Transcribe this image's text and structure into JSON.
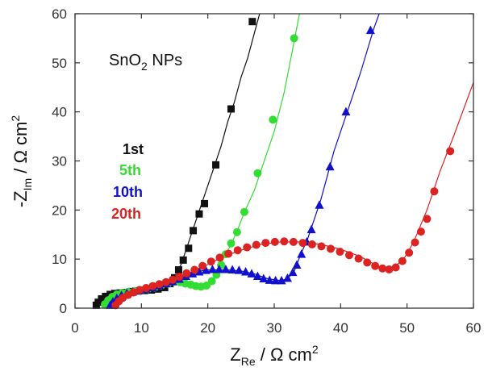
{
  "chart_data": {
    "type": "scatter",
    "title": "",
    "annotation": {
      "main": "SnO",
      "sub": "2",
      "rest": " NPs"
    },
    "xlabel": {
      "main": "Z",
      "sub": "Re",
      "rest": " / Ω cm",
      "sup": "2"
    },
    "ylabel": {
      "main": "-Z",
      "sub": "Im",
      "rest": " / Ω cm",
      "sup": "2"
    },
    "xlim": [
      0,
      60
    ],
    "ylim": [
      0,
      60
    ],
    "xticks": [
      0,
      10,
      20,
      30,
      40,
      50,
      60
    ],
    "yticks": [
      0,
      10,
      20,
      30,
      40,
      50,
      60
    ],
    "grid": false,
    "legend_position": "left",
    "series": [
      {
        "name": "1st",
        "color": "#111111",
        "marker": "square",
        "line": [
          [
            3.0,
            0
          ],
          [
            3.3,
            1.3
          ],
          [
            4.2,
            2.3
          ],
          [
            6,
            2.9
          ],
          [
            9,
            3.4
          ],
          [
            12,
            3.8
          ],
          [
            14,
            4.5
          ],
          [
            15,
            6.0
          ],
          [
            16,
            9
          ],
          [
            17,
            13
          ],
          [
            18,
            17
          ],
          [
            19,
            21
          ],
          [
            20,
            25
          ],
          [
            21,
            29
          ],
          [
            22,
            33
          ],
          [
            23,
            38
          ],
          [
            24,
            42
          ],
          [
            25,
            47
          ],
          [
            26,
            51
          ],
          [
            27,
            56
          ],
          [
            27.8,
            60
          ]
        ],
        "points": [
          [
            3.2,
            0.6
          ],
          [
            3.5,
            1.2
          ],
          [
            4.0,
            1.9
          ],
          [
            4.6,
            2.4
          ],
          [
            5.3,
            2.8
          ],
          [
            6.0,
            3.0
          ],
          [
            6.8,
            3.1
          ],
          [
            7.6,
            3.2
          ],
          [
            8.5,
            3.4
          ],
          [
            9.5,
            3.5
          ],
          [
            10.5,
            3.6
          ],
          [
            11.5,
            3.7
          ],
          [
            12.5,
            3.9
          ],
          [
            13.5,
            4.2
          ],
          [
            14.3,
            5.0
          ],
          [
            15.0,
            6.2
          ],
          [
            15.6,
            7.8
          ],
          [
            16.3,
            9.8
          ],
          [
            17.1,
            12.2
          ],
          [
            17.8,
            15.8
          ],
          [
            18.7,
            19.2
          ],
          [
            19.5,
            21.3
          ],
          [
            21.2,
            29.2
          ],
          [
            23.5,
            40.6
          ],
          [
            26.7,
            58.4
          ]
        ]
      },
      {
        "name": "5th",
        "color": "#33dd33",
        "marker": "circle",
        "line": [
          [
            4.0,
            0
          ],
          [
            4.8,
            1.8
          ],
          [
            6,
            2.9
          ],
          [
            9,
            3.6
          ],
          [
            12,
            4.3
          ],
          [
            14,
            5.0
          ],
          [
            15,
            5.6
          ],
          [
            17,
            4.9
          ],
          [
            19,
            4.3
          ],
          [
            20,
            4.6
          ],
          [
            21,
            6
          ],
          [
            21.5,
            7.2
          ],
          [
            22.3,
            10
          ],
          [
            23.5,
            13
          ],
          [
            24.5,
            16
          ],
          [
            25.5,
            19.5
          ],
          [
            27,
            24
          ],
          [
            28.5,
            30
          ],
          [
            30,
            36
          ],
          [
            31.5,
            44
          ],
          [
            32.8,
            53
          ],
          [
            33.8,
            60
          ]
        ],
        "points": [
          [
            4.5,
            0.8
          ],
          [
            5.0,
            1.6
          ],
          [
            5.6,
            2.3
          ],
          [
            6.3,
            2.8
          ],
          [
            7.1,
            3.1
          ],
          [
            8.0,
            3.3
          ],
          [
            9.0,
            3.5
          ],
          [
            10.0,
            3.7
          ],
          [
            11.0,
            3.9
          ],
          [
            12.0,
            4.2
          ],
          [
            13.0,
            4.6
          ],
          [
            14.0,
            5.0
          ],
          [
            15.0,
            5.4
          ],
          [
            15.8,
            5.3
          ],
          [
            16.6,
            5.0
          ],
          [
            17.4,
            4.8
          ],
          [
            18.2,
            4.5
          ],
          [
            19.0,
            4.4
          ],
          [
            19.8,
            4.6
          ],
          [
            20.6,
            5.5
          ],
          [
            21.3,
            6.8
          ],
          [
            22.0,
            8.8
          ],
          [
            22.7,
            11.0
          ],
          [
            23.5,
            13.2
          ],
          [
            24.4,
            15.5
          ],
          [
            25.5,
            19.6
          ],
          [
            27.5,
            27.5
          ],
          [
            29.8,
            38.4
          ],
          [
            33.0,
            55.0
          ]
        ]
      },
      {
        "name": "10th",
        "color": "#1111cc",
        "marker": "triangle",
        "line": [
          [
            5.0,
            0
          ],
          [
            5.6,
            1.6
          ],
          [
            7,
            2.9
          ],
          [
            10,
            4.0
          ],
          [
            14,
            5.5
          ],
          [
            17,
            7.2
          ],
          [
            20,
            7.8
          ],
          [
            23,
            7.8
          ],
          [
            25,
            7.6
          ],
          [
            27,
            7.0
          ],
          [
            29,
            6.0
          ],
          [
            31,
            5.6
          ],
          [
            32,
            6.0
          ],
          [
            33,
            7.5
          ],
          [
            34,
            11
          ],
          [
            35,
            14
          ],
          [
            36,
            18
          ],
          [
            37,
            22
          ],
          [
            38,
            27
          ],
          [
            39,
            32
          ],
          [
            41,
            40
          ],
          [
            43,
            48
          ],
          [
            45,
            57
          ],
          [
            45.8,
            60
          ]
        ],
        "points": [
          [
            5.3,
            0.6
          ],
          [
            5.7,
            1.3
          ],
          [
            6.3,
            2.0
          ],
          [
            7.0,
            2.6
          ],
          [
            7.8,
            3.0
          ],
          [
            8.7,
            3.3
          ],
          [
            9.7,
            3.6
          ],
          [
            10.7,
            3.9
          ],
          [
            11.7,
            4.2
          ],
          [
            12.7,
            4.6
          ],
          [
            13.7,
            5.0
          ],
          [
            14.7,
            5.4
          ],
          [
            15.7,
            5.9
          ],
          [
            16.7,
            6.5
          ],
          [
            17.7,
            7.0
          ],
          [
            18.7,
            7.4
          ],
          [
            19.7,
            7.7
          ],
          [
            20.7,
            7.9
          ],
          [
            21.7,
            7.9
          ],
          [
            22.7,
            7.9
          ],
          [
            23.7,
            7.8
          ],
          [
            24.7,
            7.7
          ],
          [
            25.7,
            7.4
          ],
          [
            26.6,
            7.0
          ],
          [
            27.5,
            6.5
          ],
          [
            28.4,
            6.0
          ],
          [
            29.3,
            5.7
          ],
          [
            30.2,
            5.6
          ],
          [
            31.1,
            5.6
          ],
          [
            32.0,
            6.1
          ],
          [
            32.8,
            7.3
          ],
          [
            33.4,
            8.8
          ],
          [
            34.1,
            11.0
          ],
          [
            34.9,
            13.5
          ],
          [
            35.6,
            16.0
          ],
          [
            36.8,
            21.0
          ],
          [
            38.4,
            28.8
          ],
          [
            40.8,
            40.0
          ],
          [
            44.5,
            56.6
          ]
        ]
      },
      {
        "name": "20th",
        "color": "#dd2222",
        "marker": "circle",
        "line": [
          [
            5.8,
            0
          ],
          [
            6.3,
            1.6
          ],
          [
            7.5,
            2.9
          ],
          [
            10,
            4.2
          ],
          [
            14,
            5.5
          ],
          [
            18,
            7.5
          ],
          [
            22,
            10.3
          ],
          [
            25,
            11.8
          ],
          [
            28,
            13.0
          ],
          [
            31,
            13.5
          ],
          [
            34,
            13.5
          ],
          [
            37,
            13.0
          ],
          [
            40,
            12.0
          ],
          [
            43,
            10.5
          ],
          [
            45,
            9.0
          ],
          [
            46.5,
            8.0
          ],
          [
            48,
            8.3
          ],
          [
            49.5,
            10
          ],
          [
            51,
            13.5
          ],
          [
            53,
            20
          ],
          [
            55,
            28
          ],
          [
            57,
            35
          ],
          [
            60,
            46
          ]
        ],
        "points": [
          [
            6.1,
            0.6
          ],
          [
            6.6,
            1.4
          ],
          [
            7.2,
            2.1
          ],
          [
            8.0,
            2.7
          ],
          [
            8.8,
            3.2
          ],
          [
            9.7,
            3.7
          ],
          [
            10.7,
            4.1
          ],
          [
            11.7,
            4.5
          ],
          [
            12.7,
            4.9
          ],
          [
            13.7,
            5.3
          ],
          [
            14.7,
            5.8
          ],
          [
            15.7,
            6.4
          ],
          [
            16.8,
            7.1
          ],
          [
            18.0,
            7.8
          ],
          [
            19.2,
            8.6
          ],
          [
            20.5,
            9.5
          ],
          [
            21.8,
            10.3
          ],
          [
            23.1,
            11.1
          ],
          [
            24.5,
            11.8
          ],
          [
            25.9,
            12.4
          ],
          [
            27.3,
            12.9
          ],
          [
            28.7,
            13.3
          ],
          [
            30.1,
            13.5
          ],
          [
            31.5,
            13.6
          ],
          [
            32.9,
            13.5
          ],
          [
            34.3,
            13.3
          ],
          [
            35.7,
            13.0
          ],
          [
            37.1,
            12.6
          ],
          [
            38.5,
            12.1
          ],
          [
            39.9,
            11.5
          ],
          [
            41.3,
            10.8
          ],
          [
            42.7,
            10.1
          ],
          [
            44.0,
            9.3
          ],
          [
            45.2,
            8.6
          ],
          [
            46.3,
            8.1
          ],
          [
            47.3,
            7.9
          ],
          [
            48.3,
            8.3
          ],
          [
            49.3,
            9.6
          ],
          [
            50.3,
            11.3
          ],
          [
            51.2,
            13.4
          ],
          [
            52.1,
            15.6
          ],
          [
            53.0,
            18.2
          ],
          [
            54.1,
            23.8
          ],
          [
            56.5,
            32.0
          ]
        ]
      }
    ]
  }
}
